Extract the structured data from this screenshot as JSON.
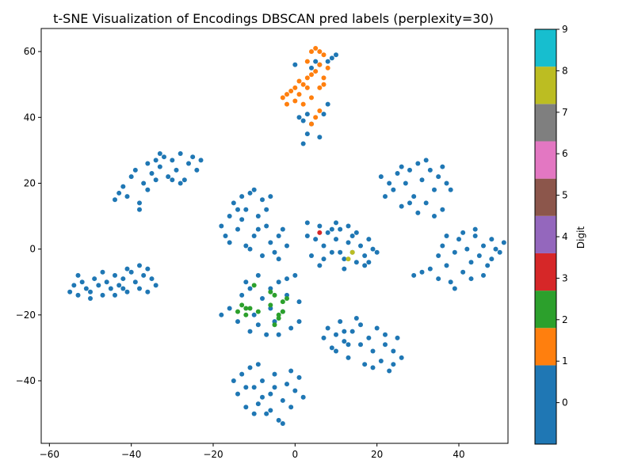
{
  "chart_data": {
    "type": "scatter",
    "title": "t-SNE Visualization of Encodings DBSCAN pred labels (perplexity=30)",
    "xlabel": "",
    "ylabel": "",
    "xlim": [
      -62,
      52
    ],
    "ylim": [
      -59,
      67
    ],
    "x_ticks": [
      -60,
      -40,
      -20,
      0,
      20,
      40
    ],
    "y_ticks": [
      60,
      40,
      20,
      0,
      -20,
      -40
    ],
    "x_tick_labels": [
      "−60",
      "−40",
      "−20",
      "0",
      "20",
      "40"
    ],
    "y_tick_labels": [
      "60",
      "40",
      "20",
      "0",
      "−20",
      "−40"
    ],
    "grid": false,
    "colorbar": {
      "label": "Digit",
      "range": [
        -1,
        9
      ],
      "ticks": [
        0,
        1,
        2,
        3,
        4,
        5,
        6,
        7,
        8,
        9
      ],
      "tick_labels": [
        "0",
        "1",
        "2",
        "3",
        "4",
        "5",
        "6",
        "7",
        "8",
        "9"
      ],
      "colors": [
        "#1f77b4",
        "#ff7f0e",
        "#2ca02c",
        "#d62728",
        "#9467bd",
        "#8c564b",
        "#e377c2",
        "#7f7f7f",
        "#bcbd22",
        "#17becf"
      ]
    },
    "series": [
      {
        "label_value": -1,
        "color": "#1f77b4",
        "points": [
          [
            -55,
            -13
          ],
          [
            -54,
            -11
          ],
          [
            -53,
            -14
          ],
          [
            -52,
            -10
          ],
          [
            -51,
            -12
          ],
          [
            -50,
            -13
          ],
          [
            -49,
            -9
          ],
          [
            -48,
            -11
          ],
          [
            -47,
            -14
          ],
          [
            -46,
            -10
          ],
          [
            -45,
            -12
          ],
          [
            -44,
            -8
          ],
          [
            -43,
            -11
          ],
          [
            -42,
            -9
          ],
          [
            -41,
            -13
          ],
          [
            -40,
            -7
          ],
          [
            -39,
            -10
          ],
          [
            -38,
            -12
          ],
          [
            -37,
            -8
          ],
          [
            -36,
            -6
          ],
          [
            -35,
            -9
          ],
          [
            -34,
            -11
          ],
          [
            -53,
            -8
          ],
          [
            -50,
            -15
          ],
          [
            -47,
            -7
          ],
          [
            -44,
            -14
          ],
          [
            -41,
            -6
          ],
          [
            -38,
            -5
          ],
          [
            -36,
            -13
          ],
          [
            -42,
            -12
          ],
          [
            -44,
            15
          ],
          [
            -43,
            17
          ],
          [
            -42,
            19
          ],
          [
            -41,
            16
          ],
          [
            -40,
            22
          ],
          [
            -39,
            24
          ],
          [
            -38,
            14
          ],
          [
            -37,
            20
          ],
          [
            -36,
            26
          ],
          [
            -35,
            23
          ],
          [
            -34,
            21
          ],
          [
            -33,
            25
          ],
          [
            -32,
            28
          ],
          [
            -31,
            22
          ],
          [
            -30,
            27
          ],
          [
            -29,
            24
          ],
          [
            -28,
            29
          ],
          [
            -27,
            21
          ],
          [
            -26,
            26
          ],
          [
            -25,
            28
          ],
          [
            -24,
            24
          ],
          [
            -23,
            27
          ],
          [
            -38,
            12
          ],
          [
            -36,
            18
          ],
          [
            -33,
            29
          ],
          [
            -28,
            20
          ],
          [
            -30,
            21
          ],
          [
            -34,
            27
          ],
          [
            -18,
            7
          ],
          [
            -17,
            4
          ],
          [
            -16,
            10
          ],
          [
            -15,
            14
          ],
          [
            -14,
            6
          ],
          [
            -13,
            9
          ],
          [
            -12,
            12
          ],
          [
            -11,
            17
          ],
          [
            -10,
            4
          ],
          [
            -9,
            10
          ],
          [
            -8,
            15
          ],
          [
            -7,
            7
          ],
          [
            -6,
            2
          ],
          [
            -5,
            -1
          ],
          [
            -4,
            4
          ],
          [
            -3,
            6
          ],
          [
            -2,
            1
          ],
          [
            -16,
            2
          ],
          [
            -13,
            16
          ],
          [
            -12,
            1
          ],
          [
            -10,
            18
          ],
          [
            -8,
            -2
          ],
          [
            -9,
            6
          ],
          [
            -14,
            12
          ],
          [
            -7,
            12
          ],
          [
            -11,
            0
          ],
          [
            -6,
            16
          ],
          [
            -4,
            -3
          ],
          [
            3,
            4
          ],
          [
            5,
            3
          ],
          [
            6,
            7
          ],
          [
            7,
            1
          ],
          [
            8,
            5
          ],
          [
            9,
            -1
          ],
          [
            10,
            3
          ],
          [
            11,
            6
          ],
          [
            12,
            -3
          ],
          [
            13,
            2
          ],
          [
            14,
            4
          ],
          [
            15,
            -4
          ],
          [
            16,
            1
          ],
          [
            17,
            -2
          ],
          [
            18,
            3
          ],
          [
            19,
            0
          ],
          [
            20,
            -1
          ],
          [
            4,
            -2
          ],
          [
            9,
            6
          ],
          [
            12,
            -6
          ],
          [
            15,
            5
          ],
          [
            17,
            -5
          ],
          [
            11,
            -1
          ],
          [
            7,
            -3
          ],
          [
            14,
            -1
          ],
          [
            10,
            8
          ],
          [
            18,
            -4
          ],
          [
            6,
            -5
          ],
          [
            13,
            7
          ],
          [
            3,
            8
          ],
          [
            -18,
            -20
          ],
          [
            -16,
            -18
          ],
          [
            -14,
            -22
          ],
          [
            -12,
            -10
          ],
          [
            -11,
            -25
          ],
          [
            -10,
            -20
          ],
          [
            -9,
            -8
          ],
          [
            -8,
            -15
          ],
          [
            -7,
            -26
          ],
          [
            -6,
            -12
          ],
          [
            -5,
            -22
          ],
          [
            -4,
            -10
          ],
          [
            -3,
            -19
          ],
          [
            -2,
            -14
          ],
          [
            -1,
            -24
          ],
          [
            0,
            -8
          ],
          [
            1,
            -16
          ],
          [
            -13,
            -14
          ],
          [
            -9,
            -23
          ],
          [
            -6,
            -18
          ],
          [
            -2,
            -9
          ],
          [
            1,
            -22
          ],
          [
            -11,
            -12
          ],
          [
            -4,
            -26
          ],
          [
            -15,
            -40
          ],
          [
            -14,
            -44
          ],
          [
            -13,
            -38
          ],
          [
            -12,
            -48
          ],
          [
            -11,
            -36
          ],
          [
            -10,
            -42
          ],
          [
            -9,
            -47
          ],
          [
            -8,
            -40
          ],
          [
            -7,
            -50
          ],
          [
            -6,
            -44
          ],
          [
            -5,
            -38
          ],
          [
            -4,
            -52
          ],
          [
            -3,
            -46
          ],
          [
            -2,
            -41
          ],
          [
            -1,
            -48
          ],
          [
            0,
            -43
          ],
          [
            1,
            -39
          ],
          [
            -12,
            -42
          ],
          [
            -9,
            -35
          ],
          [
            -6,
            -49
          ],
          [
            -3,
            -53
          ],
          [
            -1,
            -37
          ],
          [
            -8,
            -45
          ],
          [
            -5,
            -42
          ],
          [
            -10,
            -50
          ],
          [
            2,
            -45
          ],
          [
            7,
            -27
          ],
          [
            8,
            -24
          ],
          [
            9,
            -30
          ],
          [
            10,
            -26
          ],
          [
            11,
            -22
          ],
          [
            12,
            -28
          ],
          [
            13,
            -33
          ],
          [
            14,
            -25
          ],
          [
            15,
            -21
          ],
          [
            16,
            -29
          ],
          [
            17,
            -35
          ],
          [
            18,
            -27
          ],
          [
            19,
            -31
          ],
          [
            20,
            -24
          ],
          [
            21,
            -34
          ],
          [
            22,
            -29
          ],
          [
            23,
            -37
          ],
          [
            24,
            -31
          ],
          [
            25,
            -27
          ],
          [
            26,
            -33
          ],
          [
            10,
            -31
          ],
          [
            13,
            -29
          ],
          [
            16,
            -23
          ],
          [
            19,
            -36
          ],
          [
            22,
            -26
          ],
          [
            12,
            -25
          ],
          [
            24,
            -35
          ],
          [
            21,
            22
          ],
          [
            22,
            16
          ],
          [
            23,
            20
          ],
          [
            24,
            18
          ],
          [
            25,
            23
          ],
          [
            26,
            13
          ],
          [
            27,
            20
          ],
          [
            28,
            24
          ],
          [
            29,
            16
          ],
          [
            30,
            26
          ],
          [
            31,
            21
          ],
          [
            32,
            14
          ],
          [
            33,
            24
          ],
          [
            34,
            18
          ],
          [
            35,
            22
          ],
          [
            36,
            12
          ],
          [
            37,
            20
          ],
          [
            30,
            11
          ],
          [
            26,
            25
          ],
          [
            34,
            10
          ],
          [
            32,
            27
          ],
          [
            28,
            14
          ],
          [
            36,
            25
          ],
          [
            38,
            18
          ],
          [
            29,
            -8
          ],
          [
            31,
            -7
          ],
          [
            33,
            -6
          ],
          [
            35,
            -2
          ],
          [
            36,
            1
          ],
          [
            37,
            -5
          ],
          [
            38,
            -10
          ],
          [
            39,
            -1
          ],
          [
            40,
            3
          ],
          [
            41,
            -7
          ],
          [
            42,
            0
          ],
          [
            43,
            -4
          ],
          [
            44,
            4
          ],
          [
            45,
            -2
          ],
          [
            46,
            1
          ],
          [
            47,
            -5
          ],
          [
            48,
            3
          ],
          [
            49,
            0
          ],
          [
            50,
            -1
          ],
          [
            51,
            2
          ],
          [
            39,
            -12
          ],
          [
            43,
            -9
          ],
          [
            46,
            -8
          ],
          [
            37,
            4
          ],
          [
            41,
            5
          ],
          [
            48,
            -3
          ],
          [
            35,
            -9
          ],
          [
            44,
            6
          ],
          [
            2,
            32
          ],
          [
            3,
            35
          ],
          [
            4,
            38
          ],
          [
            5,
            57
          ],
          [
            6,
            56
          ],
          [
            8,
            44
          ],
          [
            9,
            58
          ],
          [
            10,
            59
          ],
          [
            3,
            41
          ],
          [
            0,
            56
          ],
          [
            7,
            41
          ],
          [
            2,
            39
          ],
          [
            6,
            34
          ],
          [
            4,
            55
          ],
          [
            1,
            40
          ],
          [
            8,
            57
          ]
        ]
      },
      {
        "label_value": 0,
        "color": "#ff7f0e",
        "points": [
          [
            -3,
            46
          ],
          [
            -2,
            44
          ],
          [
            -1,
            48
          ],
          [
            0,
            45
          ],
          [
            1,
            47
          ],
          [
            2,
            50
          ],
          [
            3,
            52
          ],
          [
            4,
            46
          ],
          [
            5,
            54
          ],
          [
            6,
            56
          ],
          [
            7,
            52
          ],
          [
            8,
            55
          ],
          [
            4,
            60
          ],
          [
            5,
            61
          ],
          [
            6,
            60
          ],
          [
            7,
            59
          ],
          [
            2,
            44
          ],
          [
            1,
            51
          ],
          [
            3,
            49
          ],
          [
            6,
            49
          ],
          [
            5,
            40
          ],
          [
            6,
            42
          ],
          [
            4,
            38
          ],
          [
            3,
            57
          ],
          [
            -2,
            47
          ],
          [
            0,
            49
          ],
          [
            4,
            53
          ],
          [
            7,
            50
          ]
        ]
      },
      {
        "label_value": 1,
        "color": "#2ca02c",
        "points": [
          [
            -14,
            -19
          ],
          [
            -13,
            -17
          ],
          [
            -12,
            -20
          ],
          [
            -11,
            -18
          ],
          [
            -10,
            -11
          ],
          [
            -9,
            -19
          ],
          [
            -6,
            -17
          ],
          [
            -5,
            -14
          ],
          [
            -4,
            -20
          ],
          [
            -3,
            -16
          ],
          [
            -2,
            -15
          ],
          [
            -5,
            -23
          ],
          [
            -4,
            -21
          ],
          [
            -12,
            -18
          ],
          [
            -6,
            -13
          ],
          [
            -3,
            -19
          ]
        ]
      },
      {
        "label_value": 2,
        "color": "#d62728",
        "points": [
          [
            6,
            5
          ]
        ]
      },
      {
        "label_value": 7,
        "color": "#bcbd22",
        "points": [
          [
            13,
            -3
          ],
          [
            14,
            -1
          ]
        ]
      }
    ]
  }
}
